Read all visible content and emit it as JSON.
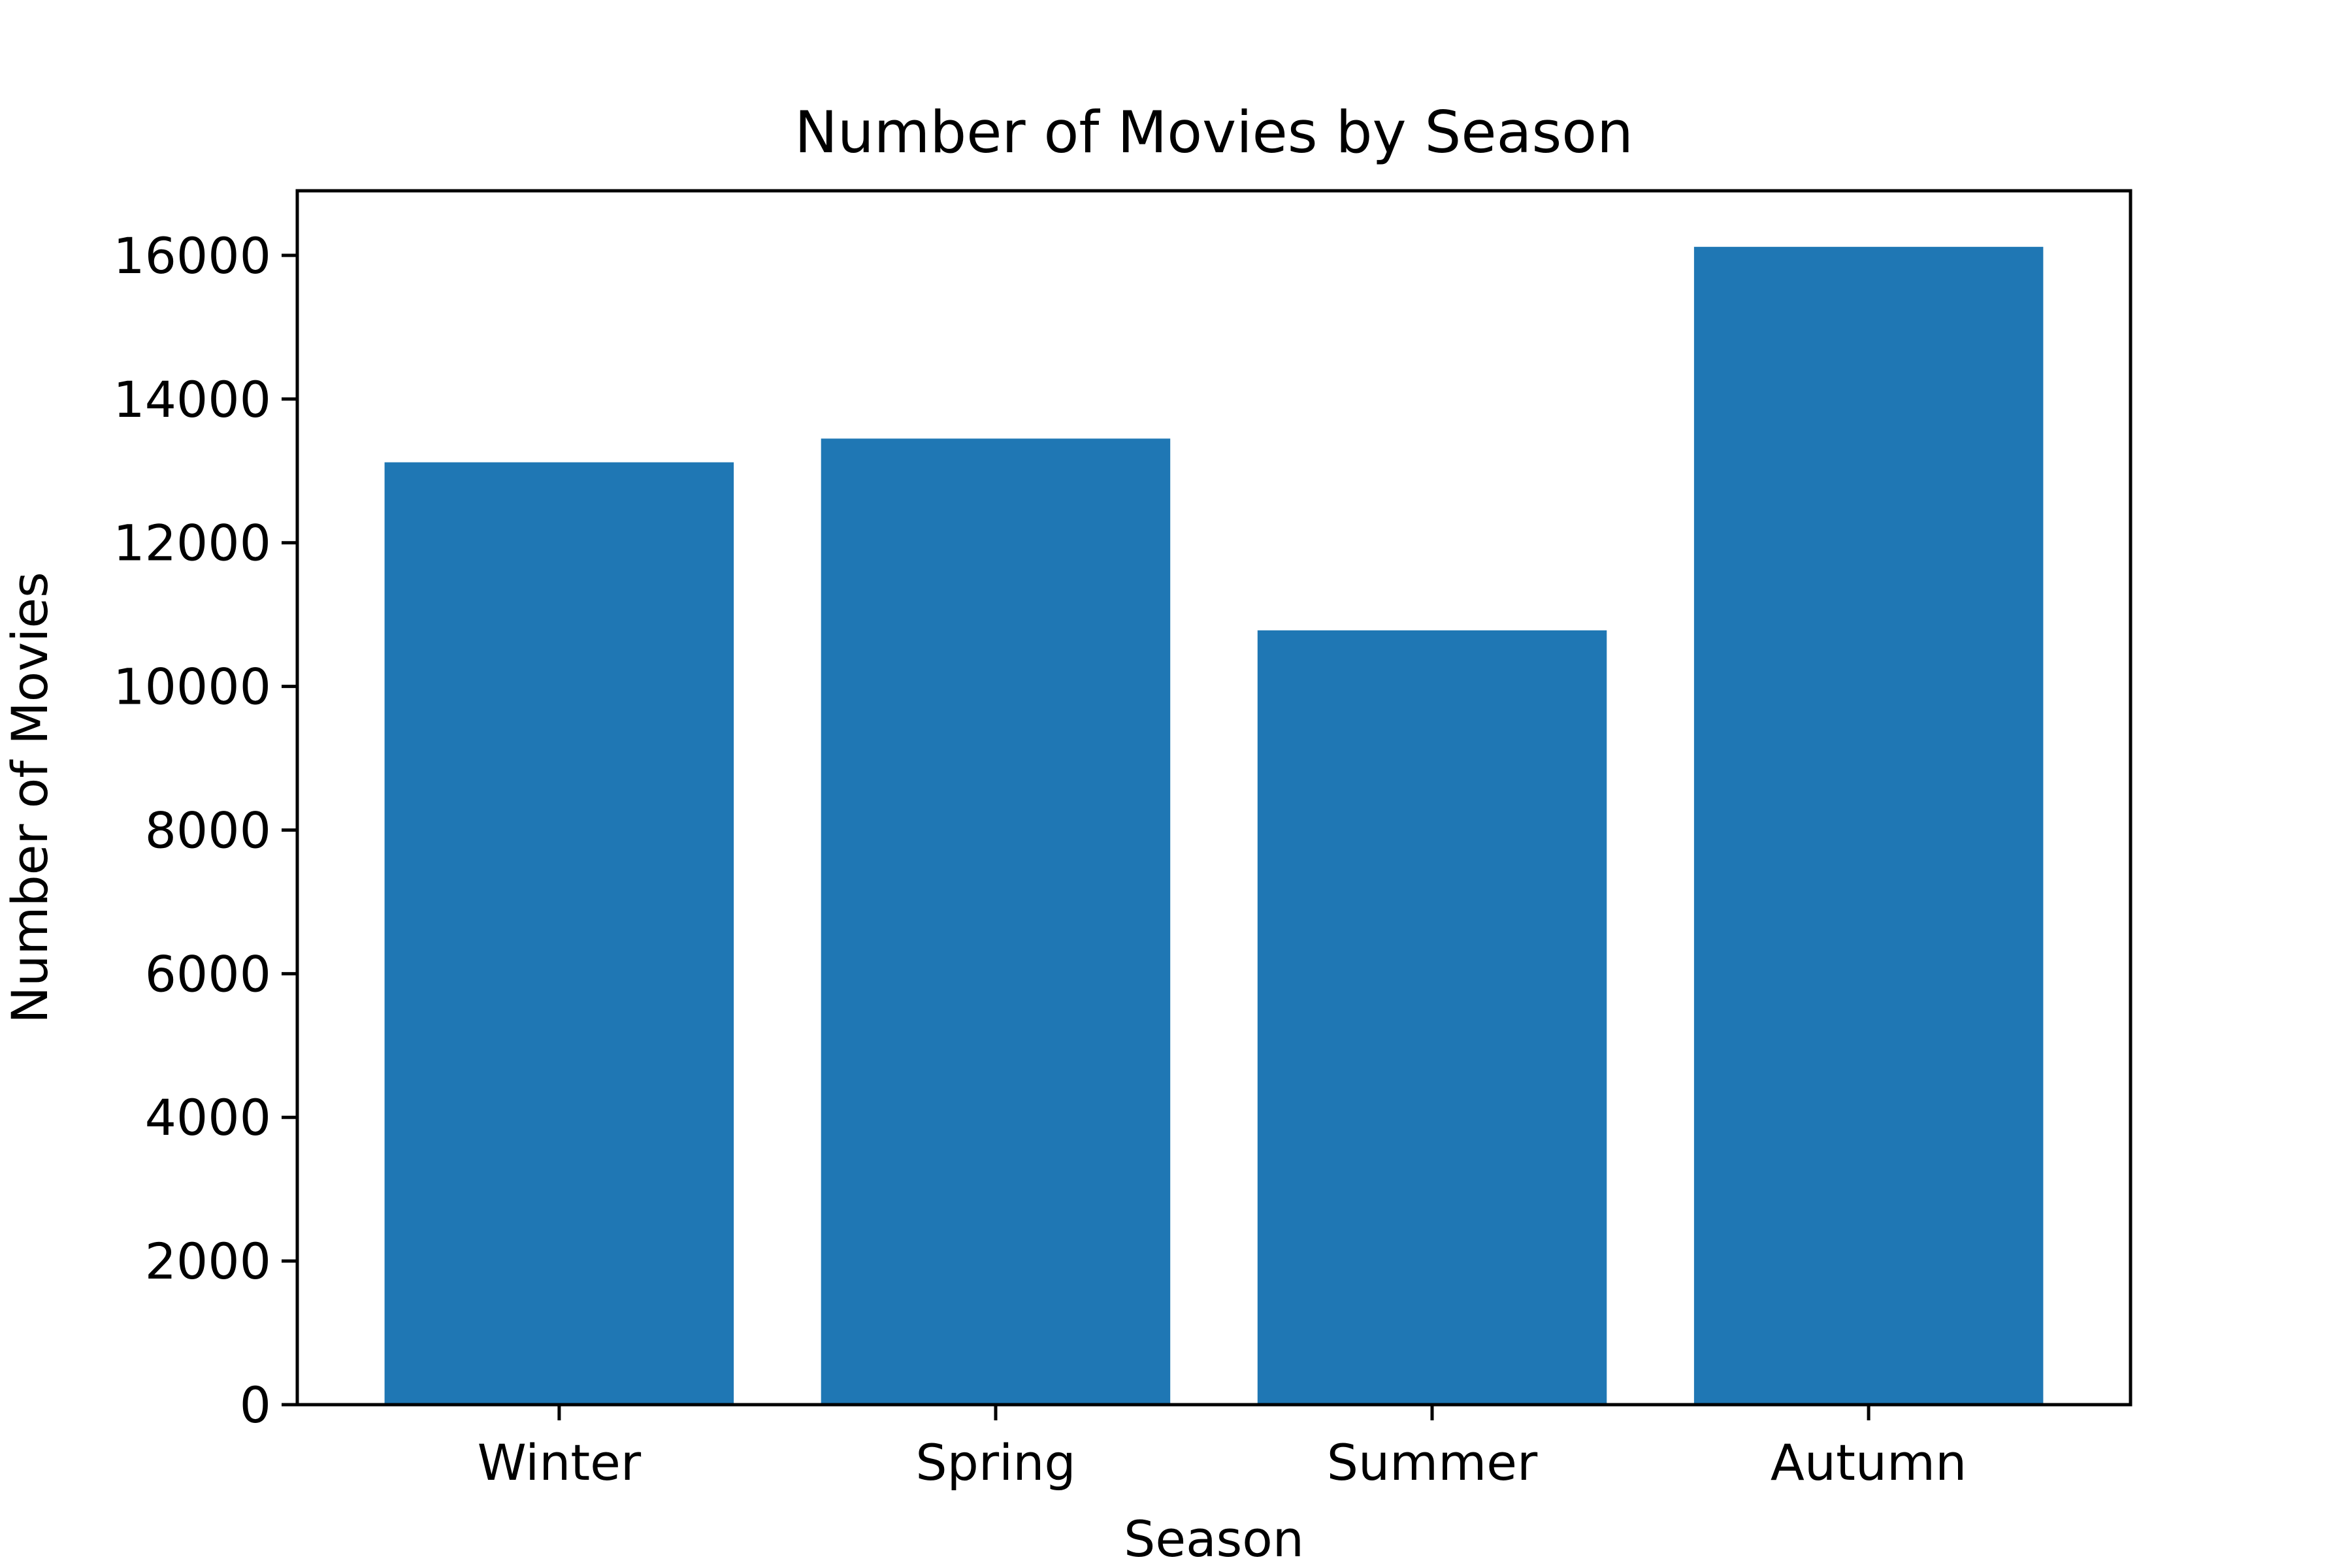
{
  "chart_data": {
    "type": "bar",
    "title": "Number of Movies by Season",
    "xlabel": "Season",
    "ylabel": "Number of Movies",
    "categories": [
      "Winter",
      "Spring",
      "Summer",
      "Autumn"
    ],
    "values": [
      13120,
      13450,
      10780,
      16120
    ],
    "ylim": [
      0,
      16900
    ],
    "yticks": [
      0,
      2000,
      4000,
      6000,
      8000,
      10000,
      12000,
      14000,
      16000
    ],
    "grid": false,
    "legend": "none",
    "bar_color": "#1f77b4"
  }
}
